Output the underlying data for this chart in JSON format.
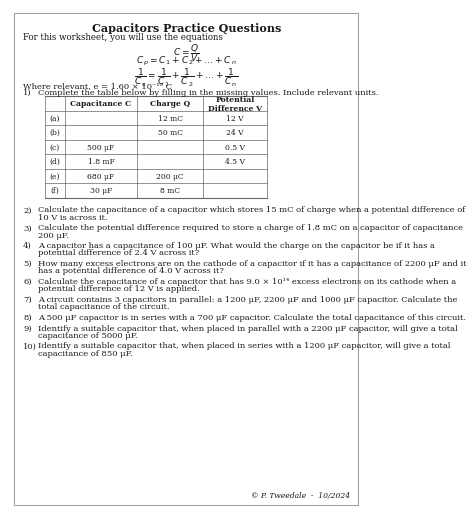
{
  "title": "Capacitors Practice Questions",
  "intro": "For this worksheet, you will use the equations",
  "where_relevant": "Where relevant, e = 1.60 × 10⁻¹⁹ C",
  "q1_text": "Complete the table below by filling in the missing values. Include relevant units.",
  "table_headers": [
    "",
    "Capacitance C",
    "Charge Q",
    "Potential\nDifference V"
  ],
  "table_rows": [
    [
      "(a)",
      "",
      "12 mC",
      "12 V"
    ],
    [
      "(b)",
      "",
      "50 mC",
      "24 V"
    ],
    [
      "(c)",
      "500 μF",
      "",
      "0.5 V"
    ],
    [
      "(d)",
      "1.8 mF",
      "",
      "4.5 V"
    ],
    [
      "(e)",
      "680 μF",
      "200 μC",
      ""
    ],
    [
      "(f)",
      "30 μF",
      "8 mC",
      ""
    ]
  ],
  "questions": [
    [
      "Calculate the capacitance of a capacitor which stores 15 mC of charge when a potential difference of",
      "10 V is across it."
    ],
    [
      "Calculate the potential difference required to store a charge of 1.8 mC on a capacitor of capacitance",
      "200 μF."
    ],
    [
      "A capacitor has a capacitance of 100 μF. What would the charge on the capacitor be if it has a",
      "potential difference of 2.4 V across it?"
    ],
    [
      "How many excess electrons are on the cathode of a capacitor if it has a capacitance of 2200 μF and it",
      "has a potential difference of 4.0 V across it?"
    ],
    [
      "Calculate the capacitance of a capacitor that has 9.0 × 10¹⁴ excess electrons on its cathode when a",
      "potential difference of 12 V is applied."
    ],
    [
      "A circuit contains 3 capacitors in parallel: a 1200 μF, 2200 μF and 1000 μF capacitor. Calculate the",
      "total capacitance of the circuit."
    ],
    [
      "A 500 μF capacitor is in series with a 700 μF capacitor. Calculate the total capacitance of this circuit."
    ],
    [
      "Identify a suitable capacitor that, when placed in parallel with a 2200 μF capacitor, will give a total",
      "capacitance of 5000 μF."
    ],
    [
      "Identify a suitable capacitor that, when placed in series with a 1200 μF capacitor, will give a total",
      "capacitance of 850 μF."
    ]
  ],
  "footer": "© P. Tweedale  -  10/2024",
  "bg_color": "#ffffff",
  "text_color": "#1a1a1a",
  "border_color": "#888888",
  "table_border": "#666666"
}
